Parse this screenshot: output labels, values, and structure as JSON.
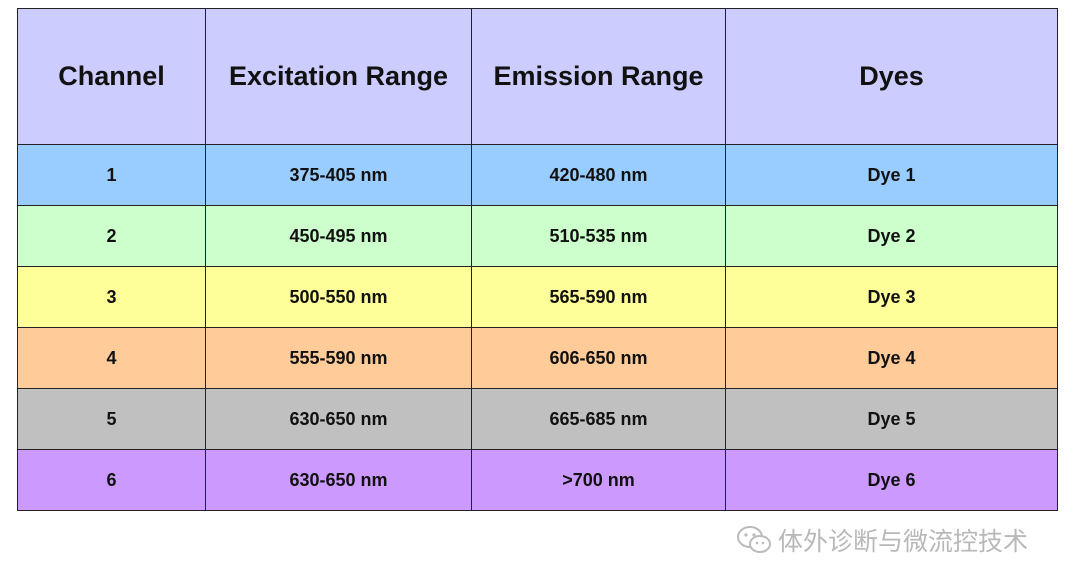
{
  "table": {
    "header": [
      "Channel",
      "Excitation Range",
      "Emission Range",
      "Dyes"
    ],
    "rows": [
      [
        "1",
        "375-405 nm",
        "420-480 nm",
        "Dye 1"
      ],
      [
        "2",
        "450-495 nm",
        "510-535 nm",
        "Dye 2"
      ],
      [
        "3",
        "500-550 nm",
        "565-590 nm",
        "Dye 3"
      ],
      [
        "4",
        "555-590 nm",
        "606-650 nm",
        "Dye 4"
      ],
      [
        "5",
        "630-650 nm",
        "665-685 nm",
        "Dye 5"
      ],
      [
        "6",
        "630-650 nm",
        ">700 nm",
        "Dye 6"
      ]
    ]
  },
  "watermark": "体外诊断与微流控技术"
}
